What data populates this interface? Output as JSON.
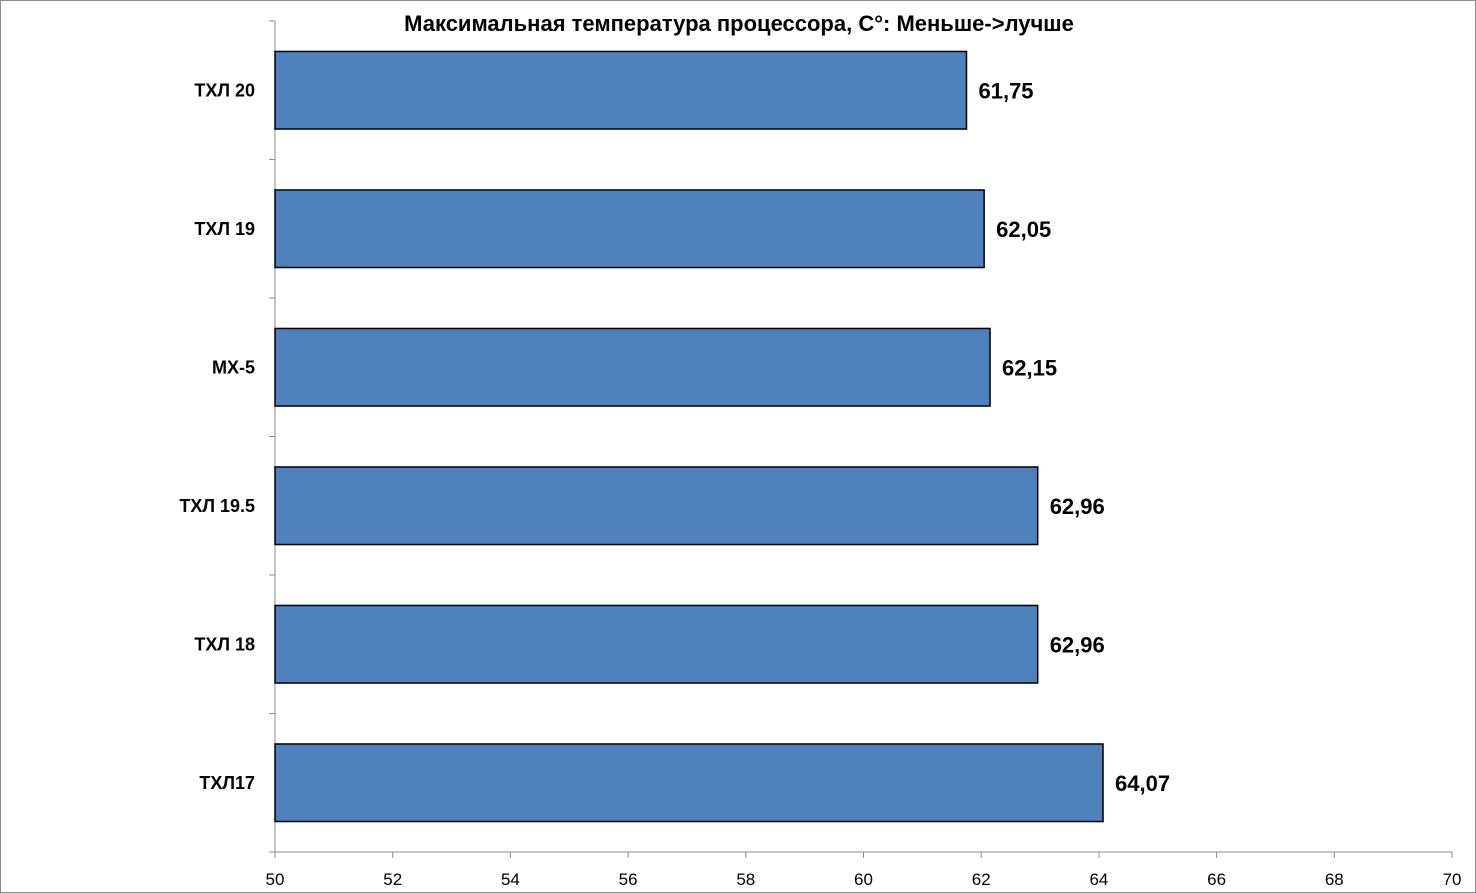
{
  "chart_data": {
    "type": "bar",
    "orientation": "horizontal",
    "title": "Максимальная температура процессора, C°: Меньше->лучше",
    "categories": [
      "ТХЛ 20",
      "ТХЛ 19",
      "MX-5",
      "ТХЛ 19.5",
      "ТХЛ 18",
      "ТХЛ17"
    ],
    "values": [
      61.75,
      62.05,
      62.15,
      62.96,
      62.96,
      64.07
    ],
    "value_labels": [
      "61,75",
      "62,05",
      "62,15",
      "62,96",
      "62,96",
      "64,07"
    ],
    "xlim": [
      50,
      70
    ],
    "x_ticks": [
      "50",
      "52",
      "54",
      "56",
      "58",
      "60",
      "62",
      "64",
      "66",
      "68",
      "70"
    ],
    "grid": false,
    "legend": "none",
    "bar_color": "#4f81bd"
  }
}
